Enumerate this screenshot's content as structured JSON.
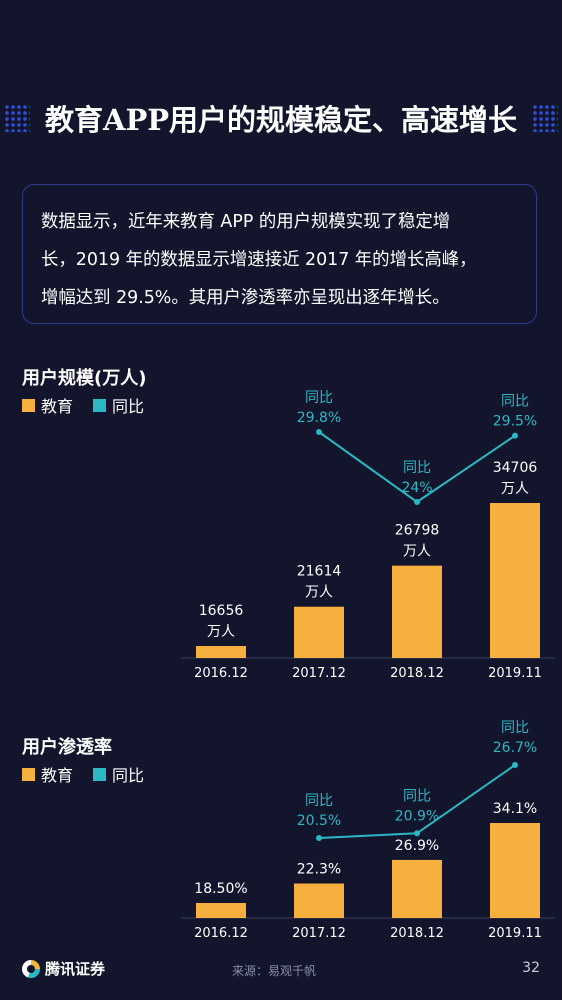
{
  "title": "教育APP用户的规模稳定、高速增长",
  "intro_lines": [
    "数据显示，近年来教育 APP 的用户规模实现了稳定增",
    "长，2019 年的数据显示增速接近 2017 年的增长高峰，",
    "增幅达到 29.5%。其用户渗透率亦呈现出逐年增长。"
  ],
  "colors": {
    "bar": "#f5b040",
    "line": "#2bb8c4",
    "background": "#12152b"
  },
  "chart_data": [
    {
      "type": "bar",
      "title": "用户规模(万人)",
      "legend": [
        "教育",
        "同比"
      ],
      "categories": [
        "2016.12",
        "2017.12",
        "2018.12",
        "2019.11"
      ],
      "series": [
        {
          "name": "教育",
          "values": [
            16656,
            21614,
            26798,
            34706
          ],
          "labels": [
            "16656\n万人",
            "21614\n万人",
            "26798\n万人",
            "34706\n万人"
          ]
        },
        {
          "name": "同比",
          "type": "line",
          "values": [
            null,
            29.8,
            24,
            29.5
          ],
          "labels": [
            "",
            "同比\n29.8%",
            "同比\n24%",
            "同比\n29.5%"
          ]
        }
      ]
    },
    {
      "type": "bar",
      "title": "用户渗透率",
      "legend": [
        "教育",
        "同比"
      ],
      "categories": [
        "2016.12",
        "2017.12",
        "2018.12",
        "2019.11"
      ],
      "series": [
        {
          "name": "教育",
          "values": [
            18.5,
            22.3,
            26.9,
            34.1
          ],
          "labels": [
            "18.50%",
            "22.3%",
            "26.9%",
            "34.1%"
          ]
        },
        {
          "name": "同比",
          "type": "line",
          "values": [
            null,
            20.5,
            20.9,
            26.7
          ],
          "labels": [
            "",
            "同比\n20.5%",
            "同比\n20.9%",
            "同比\n26.7%"
          ]
        }
      ]
    }
  ],
  "footer": {
    "logo": "腾讯证券",
    "source": "来源：易观千帆",
    "page": "32"
  }
}
